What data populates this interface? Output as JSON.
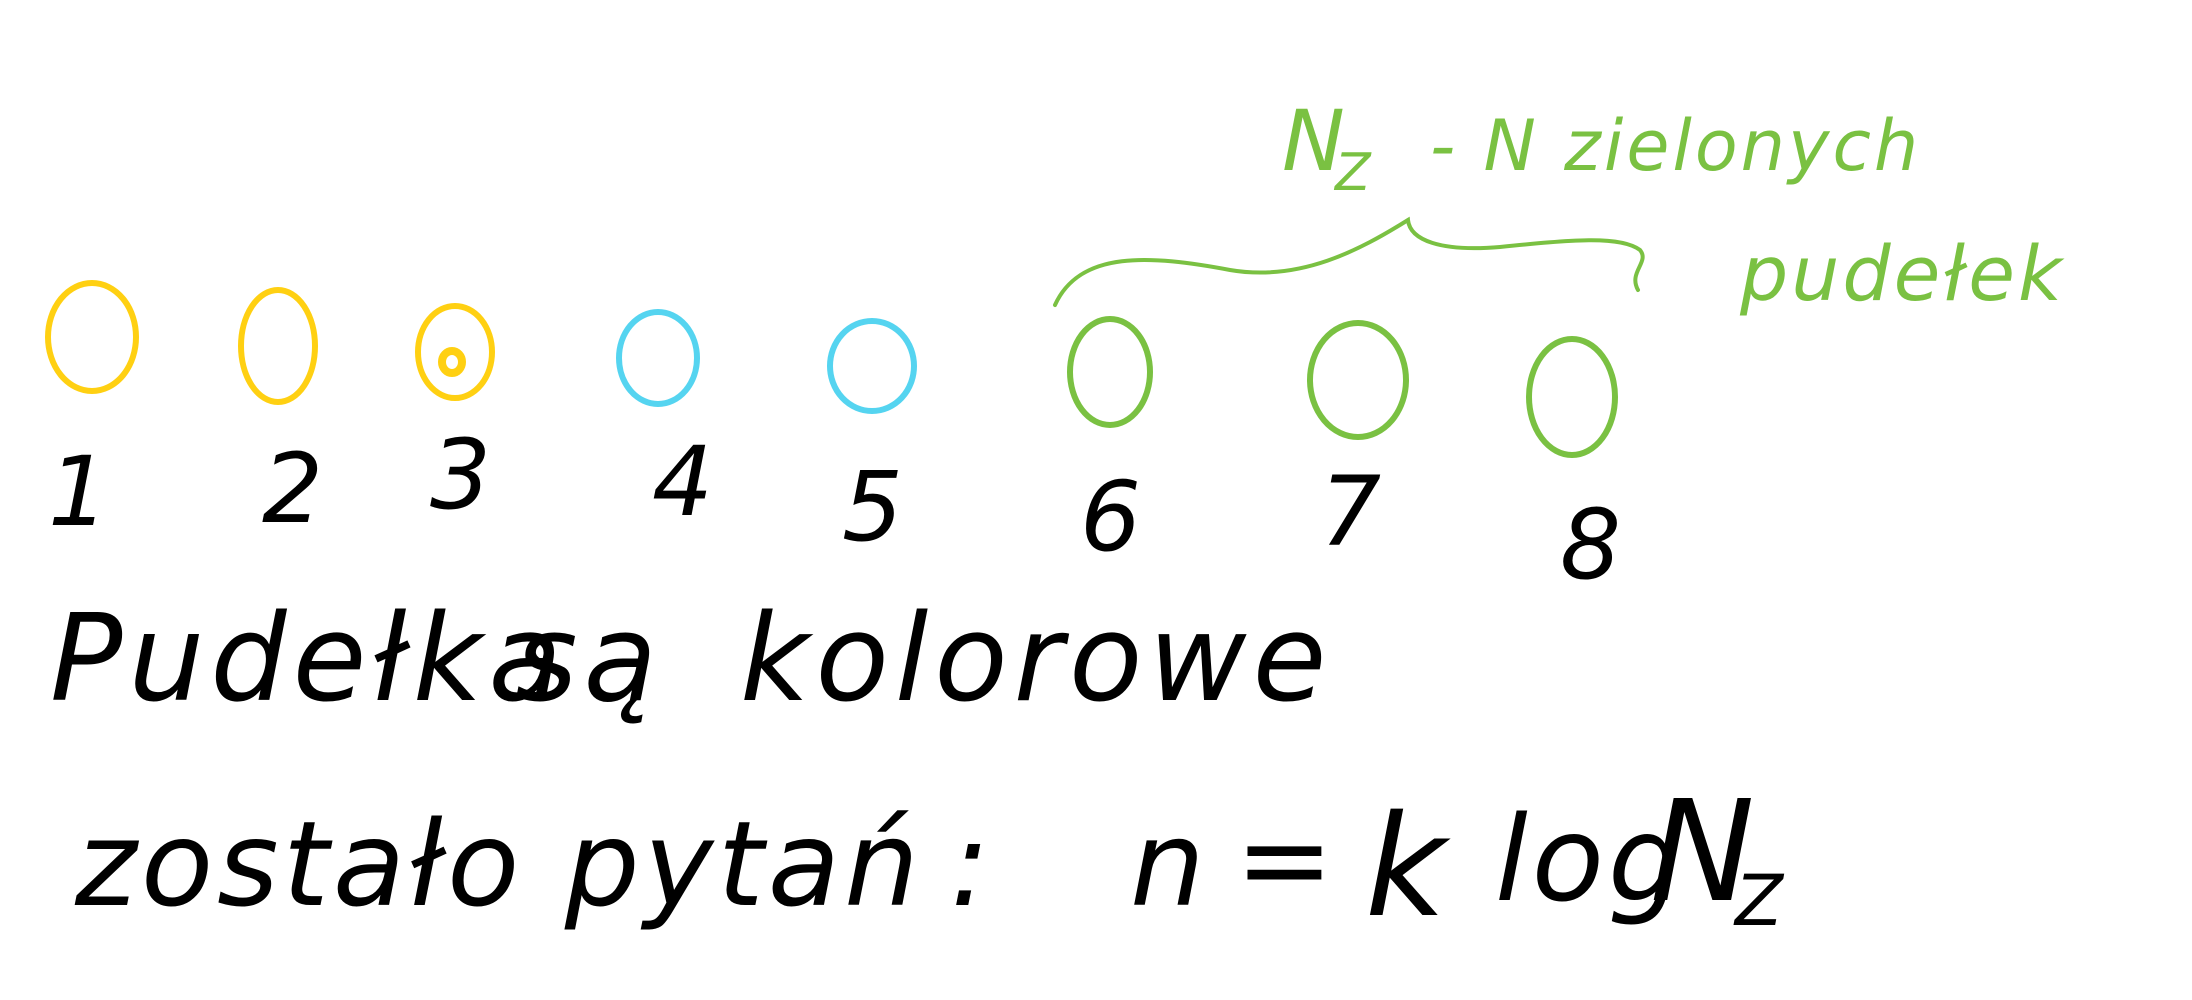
{
  "colors": {
    "yellow": "#ffd012",
    "blue": "#55d4f0",
    "green": "#7ac142",
    "ink": "#000000",
    "background": "#ffffff"
  },
  "boxes": [
    {
      "number": "1",
      "color": "yellow"
    },
    {
      "number": "2",
      "color": "yellow"
    },
    {
      "number": "3",
      "color": "yellow",
      "marked": true
    },
    {
      "number": "4",
      "color": "blue"
    },
    {
      "number": "5",
      "color": "blue"
    },
    {
      "number": "6",
      "color": "green"
    },
    {
      "number": "7",
      "color": "green"
    },
    {
      "number": "8",
      "color": "green"
    }
  ],
  "green_note": {
    "line1_symbol": "N",
    "line1_subscript": "Z",
    "line1_text": "- N zielonych",
    "line2_text": "pudełek"
  },
  "statement": {
    "word1": "Pudełka",
    "word2": "są",
    "word3": "kolorowe"
  },
  "question_line": {
    "label": "zostało pytań",
    "colon": ":",
    "variable": "n",
    "equals": "=",
    "k": "k",
    "log": "log",
    "N": "N",
    "subscript": "Z"
  }
}
